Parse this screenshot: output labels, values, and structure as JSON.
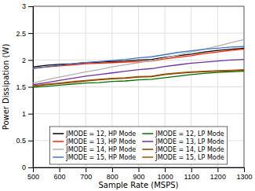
{
  "chart_data": {
    "type": "line",
    "x": [
      500,
      550,
      600,
      650,
      700,
      750,
      800,
      850,
      900,
      950,
      1000,
      1050,
      1100,
      1150,
      1200,
      1250,
      1300
    ],
    "series": [
      {
        "name": "JMODE = 12, HP Mode",
        "color": "#000000",
        "values": [
          1.87,
          1.9,
          1.92,
          1.93,
          1.95,
          1.96,
          1.97,
          1.98,
          2.0,
          2.01,
          2.05,
          2.08,
          2.11,
          2.15,
          2.18,
          2.2,
          2.22
        ]
      },
      {
        "name": "JMODE = 13, HP Mode",
        "color": "#ff2000",
        "values": [
          1.85,
          1.87,
          1.89,
          1.91,
          1.93,
          1.94,
          1.95,
          1.96,
          1.97,
          1.98,
          2.02,
          2.05,
          2.08,
          2.12,
          2.15,
          2.18,
          2.2
        ]
      },
      {
        "name": "JMODE = 14, HP Mode",
        "color": "#b0b0b0",
        "values": [
          1.57,
          1.63,
          1.68,
          1.73,
          1.78,
          1.82,
          1.87,
          1.91,
          1.95,
          1.99,
          2.04,
          2.09,
          2.15,
          2.2,
          2.26,
          2.32,
          2.38
        ]
      },
      {
        "name": "JMODE = 15, HP Mode",
        "color": "#4472c4",
        "values": [
          1.84,
          1.87,
          1.9,
          1.93,
          1.95,
          1.97,
          1.99,
          2.01,
          2.04,
          2.06,
          2.1,
          2.14,
          2.17,
          2.2,
          2.22,
          2.24,
          2.25
        ]
      },
      {
        "name": "JMODE = 12, LP Mode",
        "color": "#007000",
        "values": [
          1.49,
          1.51,
          1.53,
          1.55,
          1.57,
          1.58,
          1.6,
          1.61,
          1.63,
          1.64,
          1.67,
          1.7,
          1.73,
          1.75,
          1.77,
          1.78,
          1.79
        ]
      },
      {
        "name": "JMODE = 13, LP Mode",
        "color": "#7030a0",
        "values": [
          1.54,
          1.58,
          1.62,
          1.66,
          1.7,
          1.73,
          1.76,
          1.79,
          1.82,
          1.84,
          1.88,
          1.91,
          1.94,
          1.96,
          1.98,
          2.0,
          2.01
        ]
      },
      {
        "name": "JMODE = 14, LP Mode",
        "color": "#7b3f00",
        "values": [
          1.51,
          1.54,
          1.56,
          1.58,
          1.61,
          1.63,
          1.65,
          1.66,
          1.68,
          1.69,
          1.73,
          1.75,
          1.77,
          1.78,
          1.79,
          1.8,
          1.81
        ]
      },
      {
        "name": "JMODE = 15, LP Mode",
        "color": "#a05000",
        "values": [
          1.52,
          1.55,
          1.57,
          1.6,
          1.62,
          1.64,
          1.66,
          1.67,
          1.69,
          1.7,
          1.74,
          1.76,
          1.78,
          1.79,
          1.8,
          1.81,
          1.82
        ]
      }
    ],
    "xlim": [
      500,
      1300
    ],
    "ylim": [
      0,
      3
    ],
    "xticks": [
      500,
      600,
      700,
      800,
      900,
      1000,
      1100,
      1200,
      1300
    ],
    "yticks": [
      0,
      0.5,
      1,
      1.5,
      2,
      2.5,
      3
    ],
    "xlabel": "Sample Rate (MSPS)",
    "ylabel": "Power Dissipation (W)",
    "grid": true,
    "legend": "bottom"
  }
}
